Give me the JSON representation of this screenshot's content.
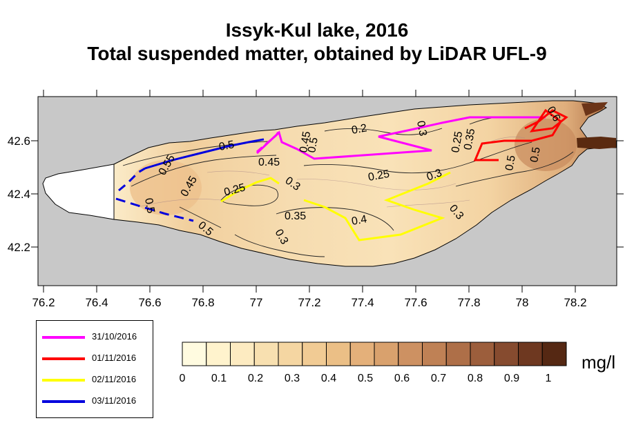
{
  "title": {
    "line1": "Issyk-Kul lake, 2016",
    "line2": "Total suspended matter, obtained by LiDAR UFL-9"
  },
  "map": {
    "x_ticks": [
      "76.2",
      "76.4",
      "76.6",
      "76.8",
      "77",
      "77.2",
      "77.4",
      "77.6",
      "77.8",
      "78",
      "78.2"
    ],
    "y_ticks": [
      "42.6",
      "42.4",
      "42.2"
    ],
    "x_range": [
      76.2,
      78.35
    ],
    "y_range": [
      42.05,
      42.72
    ],
    "background_color": "#c8c8c8",
    "contour_labels": [
      "0.5",
      "0.45",
      "0.55",
      "0.5",
      "0.45",
      "0.5",
      "0.25",
      "0.3",
      "0.45",
      "0.5",
      "0.2",
      "0.3",
      "0.25",
      "0.25",
      "0.3",
      "0.35",
      "0.4",
      "0.3",
      "0.3",
      "0.35",
      "0.5",
      "0.6",
      "0.5"
    ]
  },
  "legend": {
    "items": [
      {
        "label": "31/10/2016",
        "color": "#ff00ff"
      },
      {
        "label": "01/11/2016",
        "color": "#ff0000"
      },
      {
        "label": "02/11/2016",
        "color": "#ffff00"
      },
      {
        "label": "03/11/2016",
        "color": "#0000dd"
      }
    ]
  },
  "colorbar": {
    "labels": [
      "0",
      "0.1",
      "0.2",
      "0.3",
      "0.4",
      "0.5",
      "0.6",
      "0.7",
      "0.8",
      "0.9",
      "1"
    ],
    "unit": "mg/l",
    "colors": [
      "#fffbe0",
      "#fff3cd",
      "#fdebc1",
      "#f8e0b0",
      "#f5d6a2",
      "#f1cb94",
      "#ebbf86",
      "#e4b07a",
      "#d9a16d",
      "#cd9162",
      "#bf8155",
      "#ae6f48",
      "#9c5e3c",
      "#864b2f",
      "#6e3820",
      "#552813"
    ]
  }
}
